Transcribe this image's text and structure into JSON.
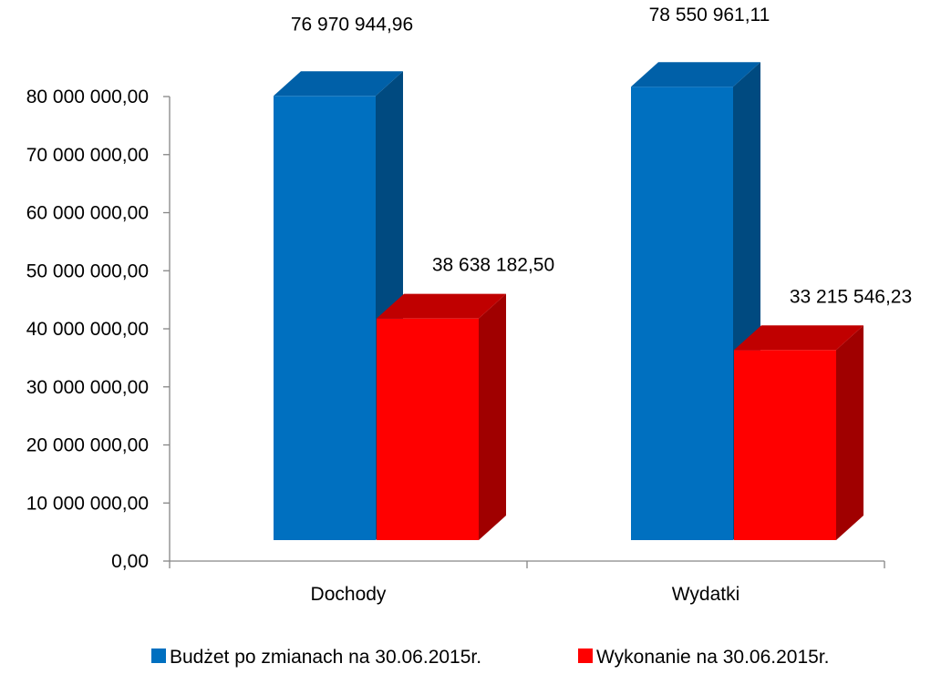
{
  "chart_data": {
    "type": "bar",
    "categories": [
      "Dochody",
      "Wydatki"
    ],
    "series": [
      {
        "name": "Budżet po zmianach na 30.06.2015r.",
        "values": [
          76970944.96,
          78550961.11
        ],
        "labels": [
          "76 970 944,96",
          "78 550 961,11"
        ],
        "color": "#0070C0",
        "side_color": "#004A80",
        "top_color": "#0060A8"
      },
      {
        "name": "Wykonanie na 30.06.2015r.",
        "values": [
          38638182.5,
          33215546.23
        ],
        "labels": [
          "38 638 182,50",
          "33 215 546,23"
        ],
        "color": "#FF0000",
        "side_color": "#A00000",
        "top_color": "#C00000"
      }
    ],
    "ylim": [
      0,
      80000000
    ],
    "yticks": [
      0,
      10000000,
      20000000,
      30000000,
      40000000,
      50000000,
      60000000,
      70000000,
      80000000
    ],
    "ytick_labels": [
      "0,00",
      "10 000 000,00",
      "20 000 000,00",
      "30 000 000,00",
      "40 000 000,00",
      "50 000 000,00",
      "60 000 000,00",
      "70 000 000,00",
      "80 000 000,00"
    ],
    "grid": false,
    "three_d": true,
    "legend_position": "bottom"
  }
}
